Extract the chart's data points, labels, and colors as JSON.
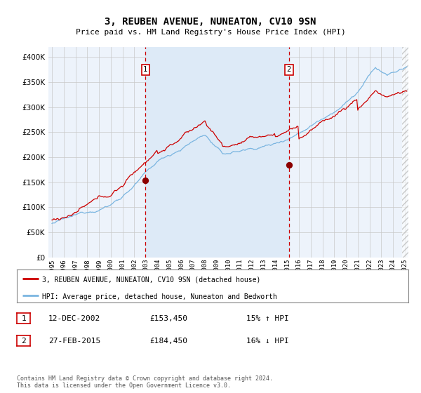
{
  "title": "3, REUBEN AVENUE, NUNEATON, CV10 9SN",
  "subtitle": "Price paid vs. HM Land Registry's House Price Index (HPI)",
  "legend_line1": "3, REUBEN AVENUE, NUNEATON, CV10 9SN (detached house)",
  "legend_line2": "HPI: Average price, detached house, Nuneaton and Bedworth",
  "table_rows": [
    {
      "num": "1",
      "date": "12-DEC-2002",
      "price": "£153,450",
      "change": "15% ↑ HPI"
    },
    {
      "num": "2",
      "date": "27-FEB-2015",
      "price": "£184,450",
      "change": "16% ↓ HPI"
    }
  ],
  "footer": "Contains HM Land Registry data © Crown copyright and database right 2024.\nThis data is licensed under the Open Government Licence v3.0.",
  "hpi_color": "#7ab5e0",
  "price_color": "#cc0000",
  "marker_color": "#8b0000",
  "vline_color": "#cc0000",
  "shade_color": "#ddeaf7",
  "background_color": "#edf3fb",
  "grid_color": "#c8c8c8",
  "ylim": [
    0,
    420000
  ],
  "yticks": [
    0,
    50000,
    100000,
    150000,
    200000,
    250000,
    300000,
    350000,
    400000
  ],
  "sale1_year": 2002.95,
  "sale1_price": 153450,
  "sale2_year": 2015.15,
  "sale2_price": 184450,
  "year_start": 1995,
  "year_end": 2025
}
